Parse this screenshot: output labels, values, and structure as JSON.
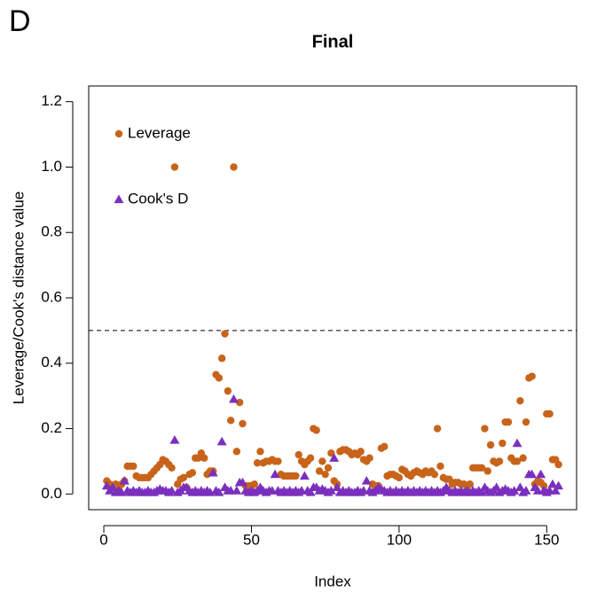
{
  "panel_label": "D",
  "chart_data": {
    "type": "scatter",
    "title": "Final",
    "x_label": "Index",
    "y_label": "Leverage/Cook's distance value",
    "x": [
      1,
      2,
      3,
      4,
      5,
      6,
      7,
      8,
      9,
      10,
      11,
      12,
      13,
      14,
      15,
      16,
      17,
      18,
      19,
      20,
      21,
      22,
      23,
      24,
      25,
      26,
      27,
      28,
      29,
      30,
      31,
      32,
      33,
      34,
      35,
      36,
      37,
      38,
      39,
      40,
      41,
      42,
      43,
      44,
      45,
      46,
      47,
      48,
      49,
      50,
      51,
      52,
      53,
      54,
      55,
      56,
      57,
      58,
      59,
      60,
      61,
      62,
      63,
      64,
      65,
      66,
      67,
      68,
      69,
      70,
      71,
      72,
      73,
      74,
      75,
      76,
      77,
      78,
      79,
      80,
      81,
      82,
      83,
      84,
      85,
      86,
      87,
      88,
      89,
      90,
      91,
      92,
      93,
      94,
      95,
      96,
      97,
      98,
      99,
      100,
      101,
      102,
      103,
      104,
      105,
      106,
      107,
      108,
      109,
      110,
      111,
      112,
      113,
      114,
      115,
      116,
      117,
      118,
      119,
      120,
      121,
      122,
      123,
      124,
      125,
      126,
      127,
      128,
      129,
      130,
      131,
      132,
      133,
      134,
      135,
      136,
      137,
      138,
      139,
      140,
      141,
      142,
      143,
      144,
      145,
      146,
      147,
      148,
      149,
      150,
      151,
      152,
      153,
      154
    ],
    "series": [
      {
        "name": "Leverage",
        "color": "#c8641a",
        "marker": "circle",
        "values": [
          0.04,
          0.03,
          0.025,
          0.03,
          0.02,
          0.03,
          0.04,
          0.085,
          0.085,
          0.085,
          0.055,
          0.05,
          0.05,
          0.05,
          0.05,
          0.06,
          0.07,
          0.08,
          0.09,
          0.105,
          0.1,
          0.09,
          0.08,
          1.0,
          0.03,
          0.045,
          0.05,
          0.02,
          0.06,
          0.065,
          0.11,
          0.11,
          0.125,
          0.11,
          0.06,
          0.07,
          0.07,
          0.365,
          0.355,
          0.415,
          0.49,
          0.315,
          0.225,
          1.0,
          0.13,
          0.28,
          0.215,
          0.025,
          0.025,
          0.025,
          0.03,
          0.095,
          0.13,
          0.095,
          0.1,
          0.1,
          0.105,
          0.1,
          0.1,
          0.06,
          0.055,
          0.055,
          0.055,
          0.055,
          0.055,
          0.12,
          0.1,
          0.09,
          0.1,
          0.11,
          0.2,
          0.195,
          0.07,
          0.1,
          0.06,
          0.08,
          0.125,
          0.04,
          0.03,
          0.13,
          0.135,
          0.135,
          0.13,
          0.12,
          0.125,
          0.12,
          0.13,
          0.105,
          0.1,
          0.11,
          0.03,
          0.025,
          0.025,
          0.14,
          0.145,
          0.055,
          0.06,
          0.06,
          0.055,
          0.05,
          0.075,
          0.07,
          0.06,
          0.055,
          0.065,
          0.07,
          0.065,
          0.06,
          0.07,
          0.065,
          0.07,
          0.06,
          0.2,
          0.085,
          0.05,
          0.045,
          0.045,
          0.03,
          0.035,
          0.035,
          0.03,
          0.03,
          0.025,
          0.03,
          0.08,
          0.08,
          0.08,
          0.08,
          0.2,
          0.07,
          0.15,
          0.1,
          0.095,
          0.1,
          0.155,
          0.22,
          0.22,
          0.11,
          0.1,
          0.1,
          0.285,
          0.11,
          0.22,
          0.355,
          0.36,
          0.03,
          0.04,
          0.035,
          0.025,
          0.245,
          0.245,
          0.105,
          0.105,
          0.09
        ]
      },
      {
        "name": "Cook's D",
        "color": "#7b2fbe",
        "marker": "triangle",
        "values": [
          0.025,
          0.01,
          0.02,
          0.005,
          0.01,
          0.005,
          0.04,
          0.01,
          0.005,
          0.01,
          0.005,
          0.01,
          0.005,
          0.005,
          0.01,
          0.005,
          0.005,
          0.01,
          0.015,
          0.01,
          0.01,
          0.005,
          0.01,
          0.165,
          0.005,
          0.01,
          0.02,
          0.02,
          0.01,
          0.005,
          0.01,
          0.005,
          0.01,
          0.005,
          0.01,
          0.005,
          0.065,
          0.01,
          0.005,
          0.16,
          0.02,
          0.01,
          0.01,
          0.29,
          0.01,
          0.035,
          0.035,
          0.01,
          0.005,
          0.01,
          0.005,
          0.01,
          0.02,
          0.01,
          0.005,
          0.01,
          0.01,
          0.06,
          0.01,
          0.005,
          0.01,
          0.005,
          0.01,
          0.005,
          0.01,
          0.005,
          0.01,
          0.055,
          0.01,
          0.005,
          0.02,
          0.02,
          0.01,
          0.015,
          0.01,
          0.005,
          0.01,
          0.11,
          0.02,
          0.005,
          0.01,
          0.005,
          0.01,
          0.005,
          0.005,
          0.01,
          0.005,
          0.01,
          0.04,
          0.01,
          0.005,
          0.01,
          0.02,
          0.015,
          0.01,
          0.005,
          0.01,
          0.005,
          0.01,
          0.005,
          0.01,
          0.005,
          0.01,
          0.005,
          0.01,
          0.005,
          0.01,
          0.005,
          0.01,
          0.005,
          0.01,
          0.005,
          0.01,
          0.005,
          0.01,
          0.02,
          0.01,
          0.005,
          0.01,
          0.005,
          0.01,
          0.005,
          0.01,
          0.005,
          0.01,
          0.005,
          0.01,
          0.005,
          0.02,
          0.01,
          0.005,
          0.01,
          0.02,
          0.005,
          0.01,
          0.015,
          0.01,
          0.005,
          0.01,
          0.155,
          0.02,
          0.005,
          0.01,
          0.06,
          0.06,
          0.02,
          0.01,
          0.06,
          0.01,
          0.005,
          0.01,
          0.03,
          0.01,
          0.025
        ]
      }
    ],
    "xlim": [
      -5.12,
      160.12
    ],
    "ylim": [
      -0.048,
      1.248
    ],
    "xticks": [
      0,
      50,
      100,
      150
    ],
    "yticks": [
      {
        "value": 0,
        "label": "0.0"
      },
      0.2,
      0.4,
      0.6,
      0.8,
      {
        "value": 1,
        "label": "1.0"
      },
      1.2
    ],
    "hline": 0.5,
    "legend": "top-left",
    "grid": false
  }
}
